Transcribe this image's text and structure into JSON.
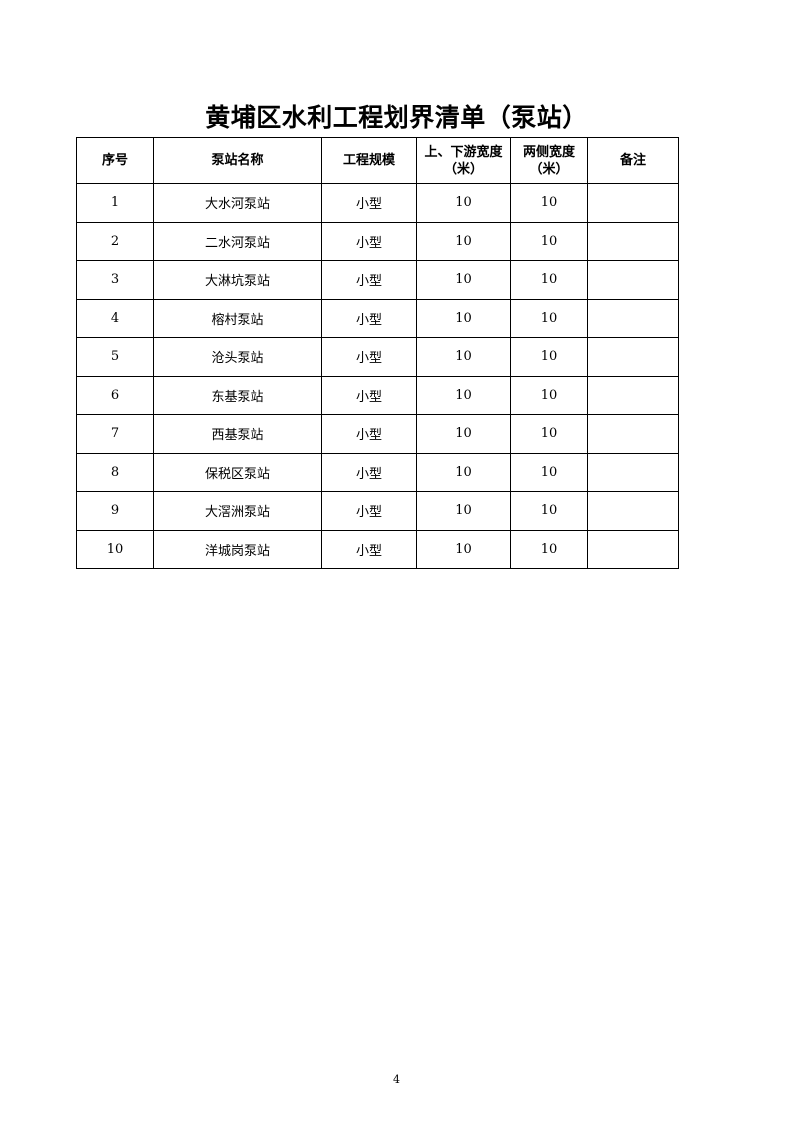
{
  "title": "黄埔区水利工程划界清单（泵站）",
  "table": {
    "headers": [
      "序号",
      "泵站名称",
      "工程规模",
      "上、下游宽度\n（米）",
      "两侧宽度\n（米）",
      "备注"
    ],
    "rows": [
      [
        "1",
        "大水河泵站",
        "小型",
        "10",
        "10",
        ""
      ],
      [
        "2",
        "二水河泵站",
        "小型",
        "10",
        "10",
        ""
      ],
      [
        "3",
        "大淋坑泵站",
        "小型",
        "10",
        "10",
        ""
      ],
      [
        "4",
        "榕村泵站",
        "小型",
        "10",
        "10",
        ""
      ],
      [
        "5",
        "沧头泵站",
        "小型",
        "10",
        "10",
        ""
      ],
      [
        "6",
        "东基泵站",
        "小型",
        "10",
        "10",
        ""
      ],
      [
        "7",
        "西基泵站",
        "小型",
        "10",
        "10",
        ""
      ],
      [
        "8",
        "保税区泵站",
        "小型",
        "10",
        "10",
        ""
      ],
      [
        "9",
        "大滘洲泵站",
        "小型",
        "10",
        "10",
        ""
      ],
      [
        "10",
        "洋城岗泵站",
        "小型",
        "10",
        "10",
        ""
      ]
    ]
  },
  "page_number": "4"
}
